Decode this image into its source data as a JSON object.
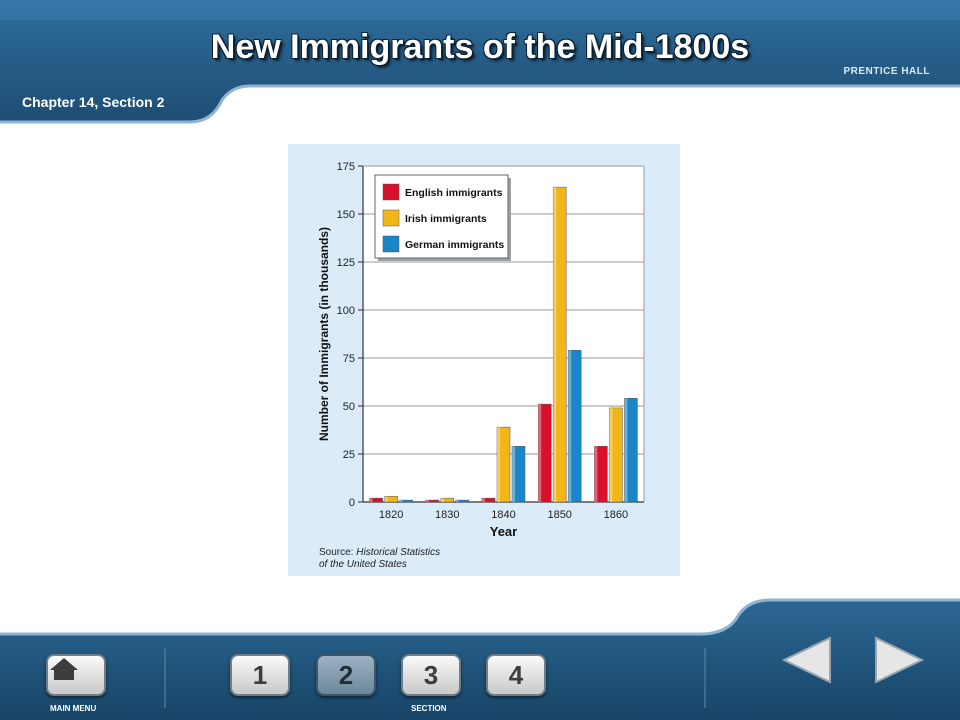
{
  "slide": {
    "title": "New Immigrants of the Mid-1800s",
    "chapter": "Chapter 14, Section 2",
    "publisher": "PRENTICE HALL"
  },
  "chart_data": {
    "type": "bar",
    "categories": [
      "1820",
      "1830",
      "1840",
      "1850",
      "1860"
    ],
    "series": [
      {
        "name": "English immigrants",
        "color": "#d8102c",
        "values": [
          2,
          1,
          2,
          51,
          29
        ]
      },
      {
        "name": "Irish immigrants",
        "color": "#f2b619",
        "values": [
          3,
          2,
          39,
          164,
          49
        ]
      },
      {
        "name": "German immigrants",
        "color": "#1a86c8",
        "values": [
          1,
          1,
          29,
          79,
          54
        ]
      }
    ],
    "ylim": [
      0,
      175
    ],
    "yticks": [
      "0",
      "25",
      "50",
      "75",
      "100",
      "125",
      "150",
      "175"
    ],
    "xlabel": "Year",
    "ylabel": "Number of Immigrants (in thousands)",
    "legend_position": "top-left",
    "grid": true,
    "source_prefix": "Source: ",
    "source_line1": "Historical Statistics",
    "source_line2": "of the United States"
  },
  "footer": {
    "main_menu_label": "MAIN MENU",
    "section_label": "SECTION",
    "section_buttons": [
      "1",
      "2",
      "3",
      "4"
    ],
    "active_section": "2"
  }
}
